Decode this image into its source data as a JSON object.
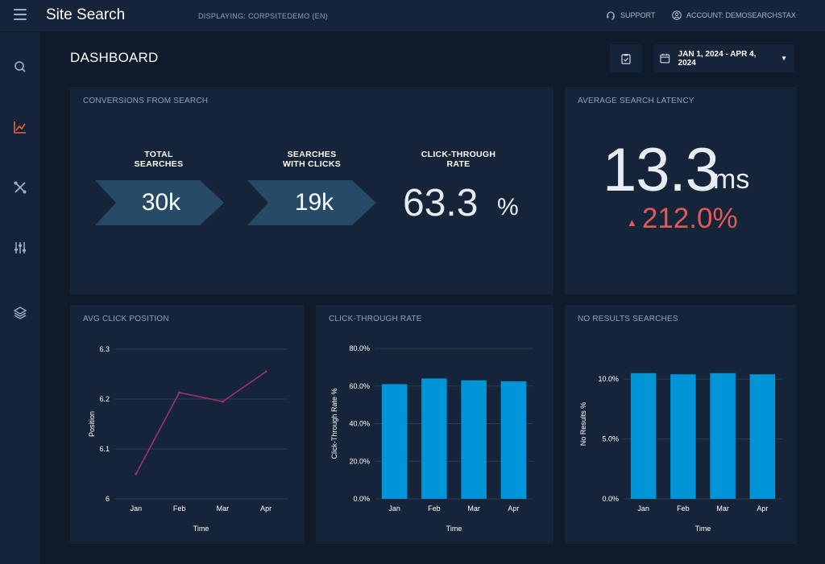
{
  "header": {
    "title": "Site Search",
    "displaying": "DISPLAYING: CORPSITEDEMO (EN)",
    "support": "SUPPORT",
    "account": "ACCOUNT: DEMOSEARCHSTAX"
  },
  "sidebar": {
    "items": [
      {
        "icon": "search-icon"
      },
      {
        "icon": "analytics-chart-icon",
        "active": true
      },
      {
        "icon": "tools-icon"
      },
      {
        "icon": "sliders-icon"
      },
      {
        "icon": "layers-icon"
      }
    ]
  },
  "page": {
    "title": "DASHBOARD",
    "date_range": "JAN 1, 2024 - APR 4, 2024"
  },
  "conversions": {
    "title": "CONVERSIONS FROM SEARCH",
    "total_searches_label_1": "TOTAL",
    "total_searches_label_2": "SEARCHES",
    "total_searches_value": "30k",
    "searches_clicks_label_1": "SEARCHES",
    "searches_clicks_label_2": "WITH CLICKS",
    "searches_clicks_value": "19k",
    "ctr_label_1": "CLICK-THROUGH",
    "ctr_label_2": "RATE",
    "ctr_value": "63.3",
    "ctr_unit": "%"
  },
  "latency": {
    "title": "AVERAGE SEARCH LATENCY",
    "value": "13.3",
    "unit": "ms",
    "change": "212.0%",
    "change_color": "#e05a5a"
  },
  "colors": {
    "accent": "#e8623a",
    "line": "#a0307e",
    "bar": "#0095d6",
    "chevron": "#274a66"
  },
  "chart_data": [
    {
      "type": "line",
      "title": "AVG CLICK POSITION",
      "categories": [
        "Jan",
        "Feb",
        "Mar",
        "Apr"
      ],
      "values": [
        6.05,
        6.213,
        6.195,
        6.255
      ],
      "xlabel": "Time",
      "ylabel": "Position",
      "ylim": [
        6,
        6.3
      ],
      "yticks": [
        "6",
        "6.1",
        "6.2",
        "6.3"
      ],
      "grid": true
    },
    {
      "type": "bar",
      "title": "CLICK-THROUGH RATE",
      "categories": [
        "Jan",
        "Feb",
        "Mar",
        "Apr"
      ],
      "values": [
        61,
        64,
        63,
        62.5
      ],
      "xlabel": "Time",
      "ylabel": "Click-Through Rate %",
      "ylim": [
        0,
        80
      ],
      "yticks": [
        "0.0%",
        "20.0%",
        "40.0%",
        "60.0%",
        "80.0%"
      ],
      "grid": true
    },
    {
      "type": "bar",
      "title": "NO RESULTS SEARCHES",
      "categories": [
        "Jan",
        "Feb",
        "Mar",
        "Apr"
      ],
      "values": [
        10.5,
        10.4,
        10.5,
        10.4
      ],
      "xlabel": "Time",
      "ylabel": "No Results %",
      "ylim": [
        0,
        12.5
      ],
      "yticks": [
        "0.0%",
        "5.0%",
        "10.0%"
      ],
      "grid": true
    }
  ]
}
